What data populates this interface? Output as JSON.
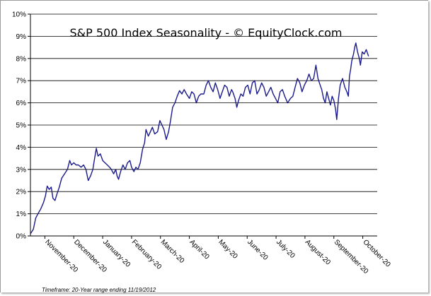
{
  "chart_data": {
    "type": "line",
    "title": "S&P 500 Index Seasonality - © EquityClock.com",
    "footnote": "Timeframe: 20-Year range ending 11/19/2012",
    "ylim": [
      0,
      10
    ],
    "ytick_labels": [
      "0%",
      "1%",
      "2%",
      "3%",
      "4%",
      "5%",
      "6%",
      "7%",
      "8%",
      "9%",
      "10%"
    ],
    "xtick_labels": [
      "November-20",
      "December-20",
      "January-20",
      "February-20",
      "March-20",
      "April-20",
      "May-20",
      "June-20",
      "July-20",
      "August-20",
      "September-20",
      "October-20"
    ],
    "grid": "horizontal",
    "line_color": "#1a1a8c",
    "series": [
      {
        "values": [
          [
            0.0,
            0.1
          ],
          [
            0.1,
            0.3
          ],
          [
            0.18,
            0.8
          ],
          [
            0.26,
            1.0
          ],
          [
            0.35,
            1.2
          ],
          [
            0.45,
            1.5
          ],
          [
            0.52,
            1.8
          ],
          [
            0.58,
            2.25
          ],
          [
            0.65,
            2.1
          ],
          [
            0.72,
            2.2
          ],
          [
            0.78,
            1.7
          ],
          [
            0.85,
            1.6
          ],
          [
            0.92,
            1.9
          ],
          [
            1.0,
            2.2
          ],
          [
            1.08,
            2.6
          ],
          [
            1.18,
            2.8
          ],
          [
            1.28,
            3.0
          ],
          [
            1.36,
            3.4
          ],
          [
            1.42,
            3.2
          ],
          [
            1.5,
            3.3
          ],
          [
            1.58,
            3.2
          ],
          [
            1.66,
            3.2
          ],
          [
            1.75,
            3.1
          ],
          [
            1.84,
            3.2
          ],
          [
            1.92,
            3.0
          ],
          [
            2.0,
            2.5
          ],
          [
            2.08,
            2.7
          ],
          [
            2.16,
            3.0
          ],
          [
            2.22,
            3.5
          ],
          [
            2.28,
            3.95
          ],
          [
            2.34,
            3.6
          ],
          [
            2.42,
            3.7
          ],
          [
            2.5,
            3.4
          ],
          [
            2.58,
            3.3
          ],
          [
            2.66,
            3.2
          ],
          [
            2.74,
            3.1
          ],
          [
            2.8,
            3.0
          ],
          [
            2.88,
            2.8
          ],
          [
            2.95,
            3.0
          ],
          [
            3.0,
            2.7
          ],
          [
            3.05,
            2.55
          ],
          [
            3.12,
            2.9
          ],
          [
            3.2,
            3.2
          ],
          [
            3.28,
            3.0
          ],
          [
            3.36,
            3.3
          ],
          [
            3.44,
            3.4
          ],
          [
            3.5,
            3.1
          ],
          [
            3.58,
            2.9
          ],
          [
            3.65,
            3.1
          ],
          [
            3.72,
            3.0
          ],
          [
            3.8,
            3.3
          ],
          [
            3.88,
            3.9
          ],
          [
            3.95,
            4.2
          ],
          [
            4.0,
            4.8
          ],
          [
            4.08,
            4.5
          ],
          [
            4.15,
            4.7
          ],
          [
            4.22,
            4.9
          ],
          [
            4.3,
            4.6
          ],
          [
            4.4,
            4.7
          ],
          [
            4.48,
            5.2
          ],
          [
            4.55,
            5.0
          ],
          [
            4.62,
            4.8
          ],
          [
            4.7,
            4.35
          ],
          [
            4.78,
            4.7
          ],
          [
            4.85,
            5.2
          ],
          [
            4.92,
            5.8
          ],
          [
            5.0,
            6.0
          ],
          [
            5.08,
            6.3
          ],
          [
            5.16,
            6.55
          ],
          [
            5.24,
            6.4
          ],
          [
            5.32,
            6.6
          ],
          [
            5.4,
            6.4
          ],
          [
            5.5,
            6.2
          ],
          [
            5.58,
            6.5
          ],
          [
            5.66,
            6.4
          ],
          [
            5.74,
            6.0
          ],
          [
            5.82,
            6.3
          ],
          [
            5.9,
            6.4
          ],
          [
            6.0,
            6.4
          ],
          [
            6.08,
            6.8
          ],
          [
            6.16,
            7.0
          ],
          [
            6.24,
            6.7
          ],
          [
            6.32,
            6.5
          ],
          [
            6.4,
            6.9
          ],
          [
            6.48,
            6.6
          ],
          [
            6.56,
            6.2
          ],
          [
            6.64,
            6.5
          ],
          [
            6.72,
            6.8
          ],
          [
            6.8,
            6.7
          ],
          [
            6.88,
            6.3
          ],
          [
            6.96,
            6.6
          ],
          [
            7.0,
            6.5
          ],
          [
            7.08,
            6.2
          ],
          [
            7.14,
            5.8
          ],
          [
            7.2,
            6.1
          ],
          [
            7.28,
            6.4
          ],
          [
            7.36,
            6.3
          ],
          [
            7.44,
            6.7
          ],
          [
            7.52,
            6.8
          ],
          [
            7.6,
            6.4
          ],
          [
            7.68,
            6.9
          ],
          [
            7.76,
            7.0
          ],
          [
            7.84,
            6.4
          ],
          [
            7.92,
            6.6
          ],
          [
            8.0,
            6.9
          ],
          [
            8.08,
            6.7
          ],
          [
            8.16,
            6.3
          ],
          [
            8.24,
            6.5
          ],
          [
            8.32,
            6.7
          ],
          [
            8.4,
            6.4
          ],
          [
            8.48,
            6.2
          ],
          [
            8.56,
            6.0
          ],
          [
            8.64,
            6.5
          ],
          [
            8.72,
            6.6
          ],
          [
            8.8,
            6.3
          ],
          [
            8.9,
            6.0
          ],
          [
            9.0,
            6.2
          ],
          [
            9.08,
            6.3
          ],
          [
            9.16,
            6.7
          ],
          [
            9.24,
            7.1
          ],
          [
            9.32,
            6.9
          ],
          [
            9.4,
            6.5
          ],
          [
            9.48,
            6.8
          ],
          [
            9.56,
            7.0
          ],
          [
            9.64,
            7.3
          ],
          [
            9.72,
            7.0
          ],
          [
            9.8,
            7.1
          ],
          [
            9.88,
            7.7
          ],
          [
            9.95,
            7.1
          ],
          [
            10.0,
            6.9
          ],
          [
            10.08,
            6.6
          ],
          [
            10.14,
            6.2
          ],
          [
            10.2,
            6.0
          ],
          [
            10.26,
            6.5
          ],
          [
            10.32,
            6.2
          ],
          [
            10.38,
            5.9
          ],
          [
            10.44,
            6.3
          ],
          [
            10.5,
            6.1
          ],
          [
            10.56,
            5.7
          ],
          [
            10.6,
            5.25
          ],
          [
            10.66,
            6.2
          ],
          [
            10.72,
            6.8
          ],
          [
            10.8,
            7.1
          ],
          [
            10.88,
            6.7
          ],
          [
            10.95,
            6.5
          ],
          [
            11.0,
            6.3
          ],
          [
            11.04,
            7.2
          ],
          [
            11.08,
            7.5
          ],
          [
            11.12,
            7.9
          ],
          [
            11.18,
            8.2
          ],
          [
            11.22,
            8.5
          ],
          [
            11.26,
            8.7
          ],
          [
            11.32,
            8.3
          ],
          [
            11.38,
            8.0
          ],
          [
            11.42,
            7.7
          ],
          [
            11.48,
            8.3
          ],
          [
            11.55,
            8.2
          ],
          [
            11.62,
            8.4
          ],
          [
            11.7,
            8.1
          ]
        ]
      }
    ]
  }
}
